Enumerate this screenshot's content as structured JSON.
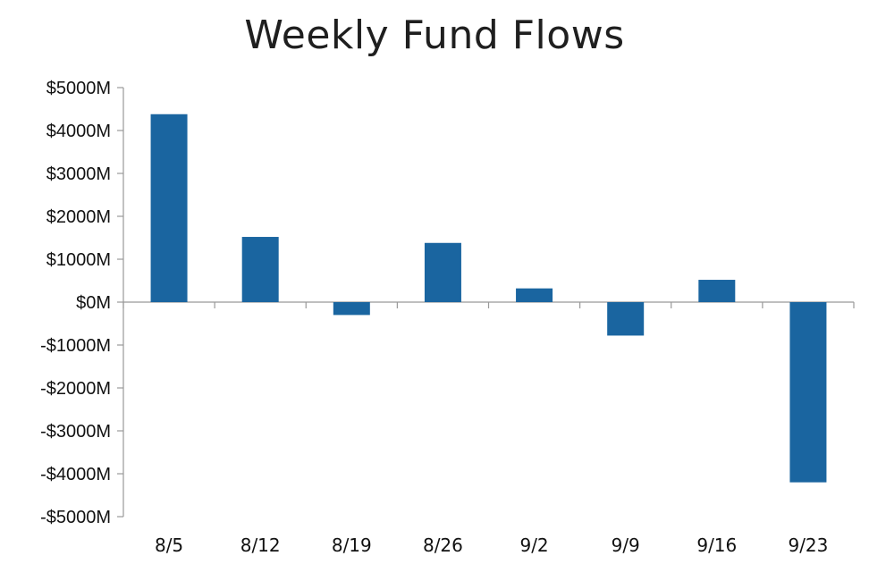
{
  "chart_data": {
    "type": "bar",
    "title": "Weekly Fund Flows",
    "xlabel": "",
    "ylabel": "",
    "categories": [
      "8/5",
      "8/12",
      "8/19",
      "8/26",
      "9/2",
      "9/9",
      "9/16",
      "9/23"
    ],
    "values": [
      4380,
      1520,
      -300,
      1380,
      320,
      -780,
      520,
      -4200
    ],
    "ylim": [
      -5000,
      5000
    ],
    "yticks": [
      5000,
      4000,
      3000,
      2000,
      1000,
      0,
      -1000,
      -2000,
      -3000,
      -4000,
      -5000
    ],
    "ytick_labels": [
      "$5000M",
      "$4000M",
      "$3000M",
      "$2000M",
      "$1000M",
      "$0M",
      "-$1000M",
      "-$2000M",
      "-$3000M",
      "-$4000M",
      "-$5000M"
    ],
    "grid": false,
    "legend": "none",
    "bar_color": "#1a65a0",
    "axis_color": "#999999"
  }
}
